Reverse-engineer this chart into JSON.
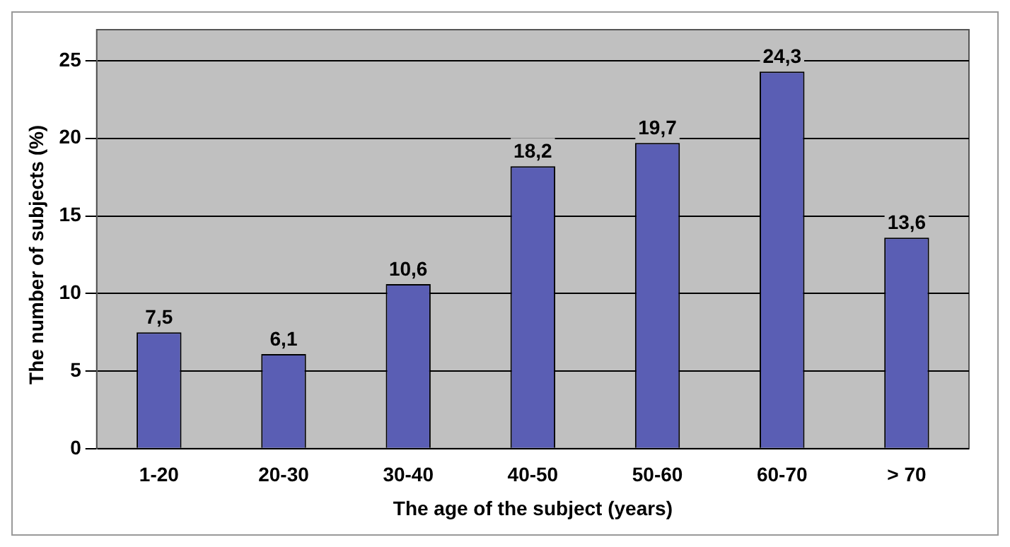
{
  "chart_data": {
    "type": "bar",
    "xlabel": "The age of the subject (years)",
    "ylabel": "The number of subjects (%)",
    "categories": [
      "1-20",
      "20-30",
      "30-40",
      "40-50",
      "50-60",
      "60-70",
      "> 70"
    ],
    "values": [
      7.5,
      6.1,
      10.6,
      18.2,
      19.7,
      24.3,
      13.6
    ],
    "value_labels": [
      "7,5",
      "6,1",
      "10,6",
      "18,2",
      "19,7",
      "24,3",
      "13,6"
    ],
    "color": "#5a5eb4",
    "ylim": [
      0,
      25
    ],
    "yticks": [
      0,
      5,
      10,
      15,
      20,
      25
    ],
    "grid": "y",
    "legend": false
  }
}
